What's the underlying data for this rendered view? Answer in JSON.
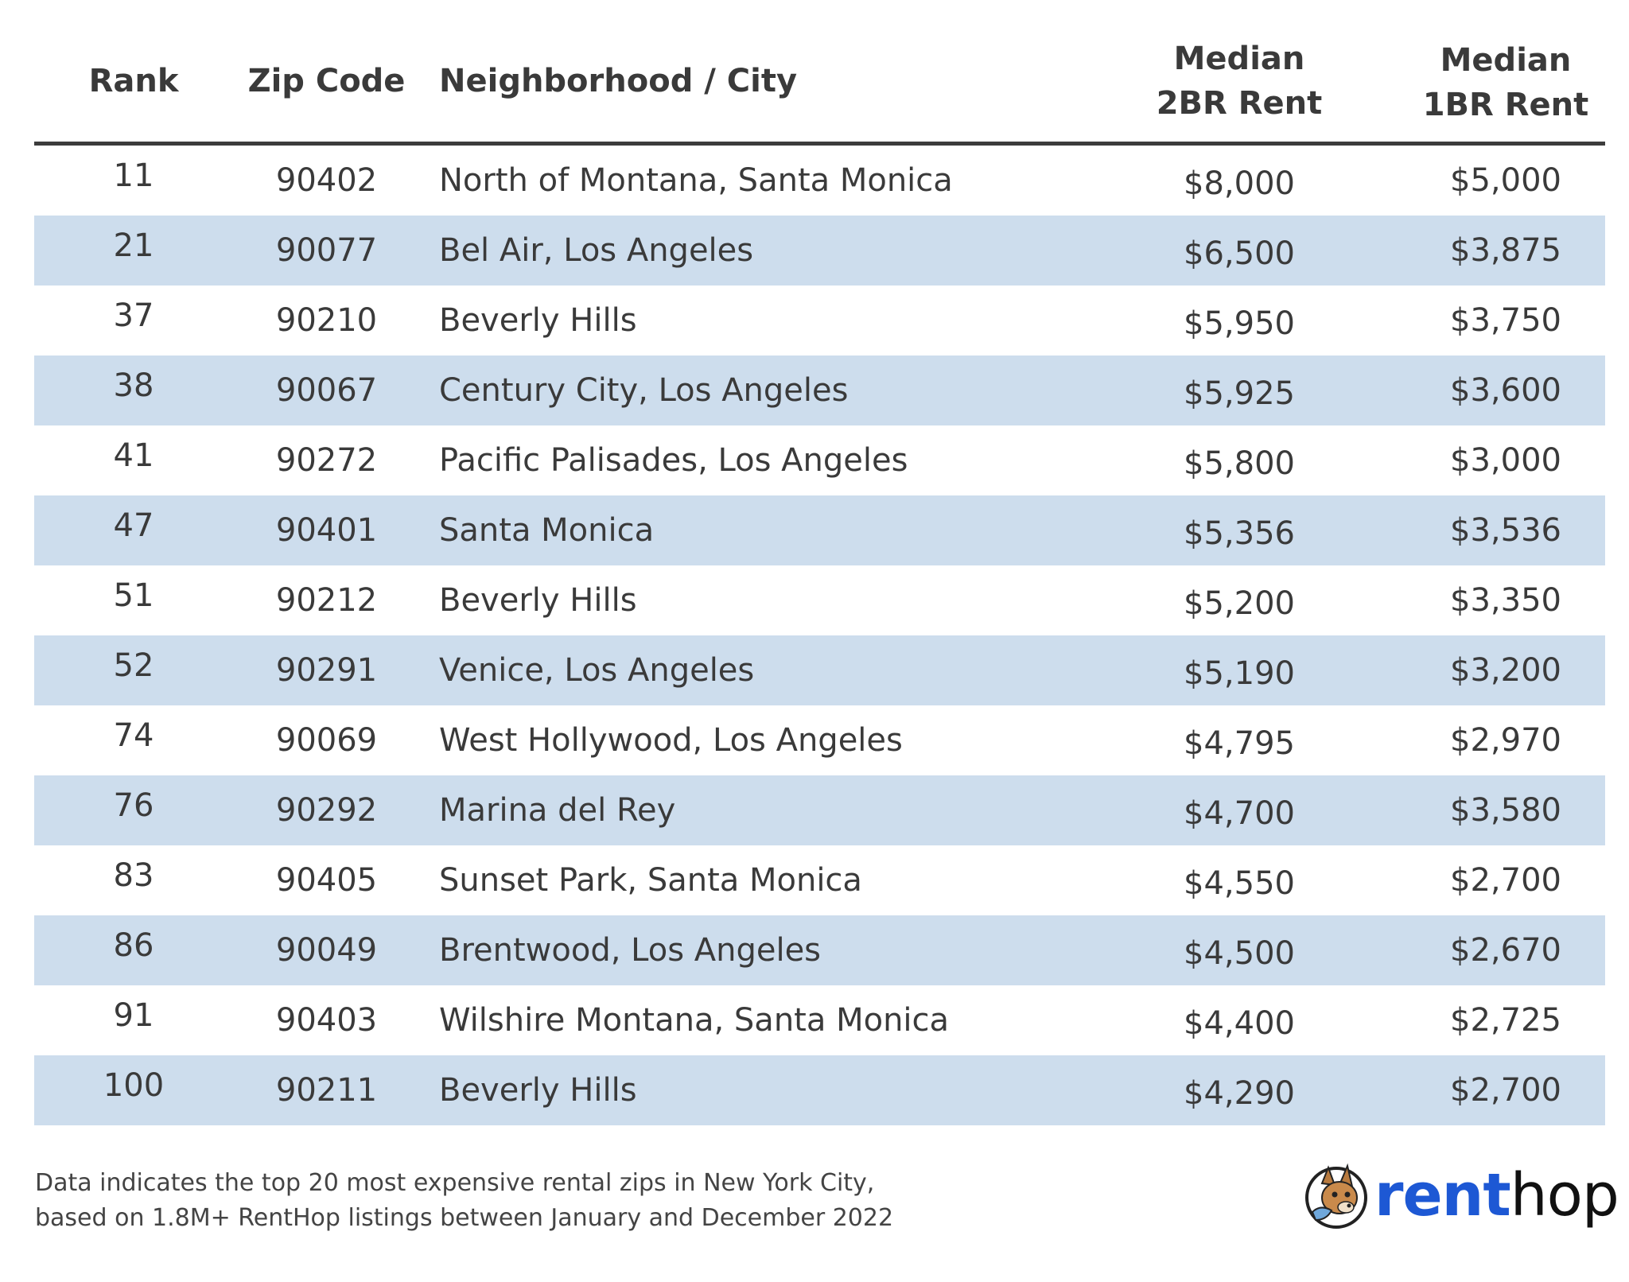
{
  "table": {
    "headers": {
      "rank": "Rank",
      "zip": "Zip Code",
      "neighborhood": "Neighborhood / City",
      "two_br_line1": "Median",
      "two_br_line2": "2BR Rent",
      "one_br_line1": "Median",
      "one_br_line2": "1BR Rent"
    },
    "rows": [
      {
        "rank": "11",
        "zip": "90402",
        "neighborhood": "North of Montana, Santa Monica",
        "two_br": "$8,000",
        "one_br": "$5,000"
      },
      {
        "rank": "21",
        "zip": "90077",
        "neighborhood": "Bel Air, Los Angeles",
        "two_br": "$6,500",
        "one_br": "$3,875"
      },
      {
        "rank": "37",
        "zip": "90210",
        "neighborhood": "Beverly Hills",
        "two_br": "$5,950",
        "one_br": "$3,750"
      },
      {
        "rank": "38",
        "zip": "90067",
        "neighborhood": "Century City, Los Angeles",
        "two_br": "$5,925",
        "one_br": "$3,600"
      },
      {
        "rank": "41",
        "zip": "90272",
        "neighborhood": "Pacific Palisades, Los Angeles",
        "two_br": "$5,800",
        "one_br": "$3,000"
      },
      {
        "rank": "47",
        "zip": "90401",
        "neighborhood": "Santa Monica",
        "two_br": "$5,356",
        "one_br": "$3,536"
      },
      {
        "rank": "51",
        "zip": "90212",
        "neighborhood": "Beverly Hills",
        "two_br": "$5,200",
        "one_br": "$3,350"
      },
      {
        "rank": "52",
        "zip": "90291",
        "neighborhood": "Venice, Los Angeles",
        "two_br": "$5,190",
        "one_br": "$3,200"
      },
      {
        "rank": "74",
        "zip": "90069",
        "neighborhood": "West Hollywood, Los Angeles",
        "two_br": "$4,795",
        "one_br": "$2,970"
      },
      {
        "rank": "76",
        "zip": "90292",
        "neighborhood": "Marina del Rey",
        "two_br": "$4,700",
        "one_br": "$3,580"
      },
      {
        "rank": "83",
        "zip": "90405",
        "neighborhood": "Sunset Park, Santa Monica",
        "two_br": "$4,550",
        "one_br": "$2,700"
      },
      {
        "rank": "86",
        "zip": "90049",
        "neighborhood": "Brentwood, Los Angeles",
        "two_br": "$4,500",
        "one_br": "$2,670"
      },
      {
        "rank": "91",
        "zip": "90403",
        "neighborhood": "Wilshire Montana, Santa Monica",
        "two_br": "$4,400",
        "one_br": "$2,725"
      },
      {
        "rank": "100",
        "zip": "90211",
        "neighborhood": "Beverly Hills",
        "two_br": "$4,290",
        "one_br": "$2,700"
      }
    ],
    "row_shade_color": "#cddded",
    "header_rule_color": "#3c3c3c"
  },
  "footnote": {
    "line1": "Data indicates the top 20 most expensive rental zips in New York City,",
    "line2": "based on 1.8M+ RentHop listings between January and December 2022"
  },
  "logo": {
    "part1": "rent",
    "part2": "hop",
    "icon": "fox-mascot-icon",
    "brand_color": "#1d58d4"
  },
  "chart_data": {
    "type": "table",
    "columns": [
      "Rank",
      "Zip Code",
      "Neighborhood / City",
      "Median 2BR Rent",
      "Median 1BR Rent"
    ],
    "rows": [
      [
        11,
        "90402",
        "North of Montana, Santa Monica",
        8000,
        5000
      ],
      [
        21,
        "90077",
        "Bel Air, Los Angeles",
        6500,
        3875
      ],
      [
        37,
        "90210",
        "Beverly Hills",
        5950,
        3750
      ],
      [
        38,
        "90067",
        "Century City, Los Angeles",
        5925,
        3600
      ],
      [
        41,
        "90272",
        "Pacific Palisades, Los Angeles",
        5800,
        3000
      ],
      [
        47,
        "90401",
        "Santa Monica",
        5356,
        3536
      ],
      [
        51,
        "90212",
        "Beverly Hills",
        5200,
        3350
      ],
      [
        52,
        "90291",
        "Venice, Los Angeles",
        5190,
        3200
      ],
      [
        74,
        "90069",
        "West Hollywood, Los Angeles",
        4795,
        2970
      ],
      [
        76,
        "90292",
        "Marina del Rey",
        4700,
        3580
      ],
      [
        83,
        "90405",
        "Sunset Park, Santa Monica",
        4550,
        2700
      ],
      [
        86,
        "90049",
        "Brentwood, Los Angeles",
        4500,
        2670
      ],
      [
        91,
        "90403",
        "Wilshire Montana, Santa Monica",
        4400,
        2725
      ],
      [
        100,
        "90211",
        "Beverly Hills",
        4290,
        2700
      ]
    ]
  }
}
